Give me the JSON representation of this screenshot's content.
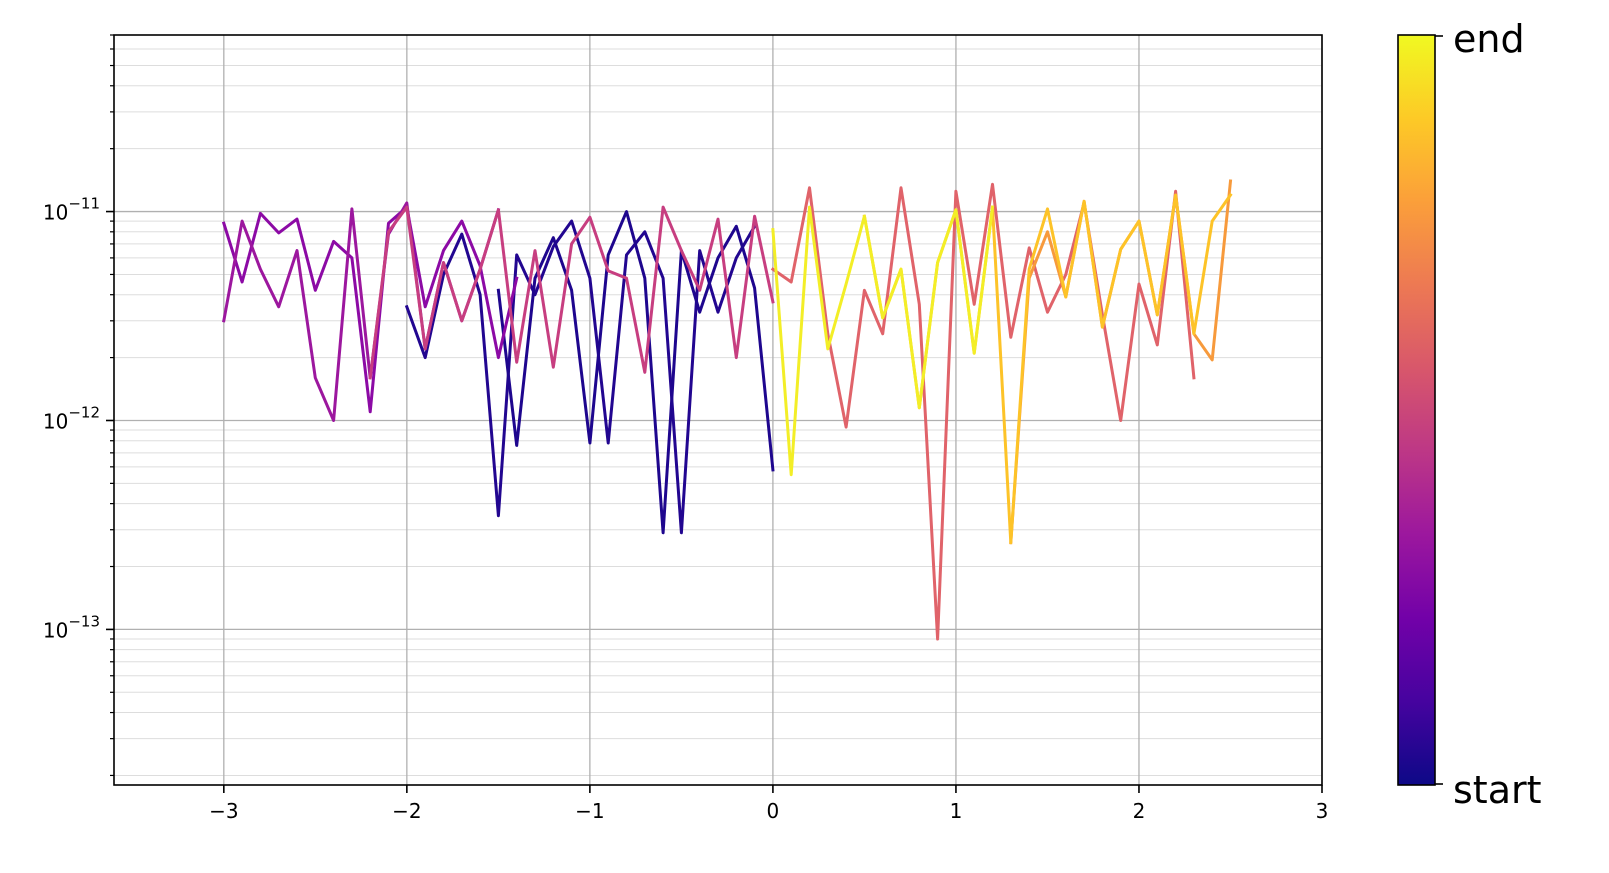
{
  "chart_data": {
    "type": "line",
    "title": "",
    "xlabel": "",
    "ylabel": "",
    "xlim": [
      -3.6,
      3.0
    ],
    "ylim": [
      1.8e-14,
      7e-11
    ],
    "yscale": "log",
    "grid": true,
    "x_ticks": [
      {
        "value": -3,
        "label": "−3"
      },
      {
        "value": -2,
        "label": "−2"
      },
      {
        "value": -1,
        "label": "−1"
      },
      {
        "value": 0,
        "label": "0"
      },
      {
        "value": 1,
        "label": "1"
      },
      {
        "value": 2,
        "label": "2"
      },
      {
        "value": 3,
        "label": "3"
      }
    ],
    "y_ticks": [
      {
        "value": 1e-11,
        "base": "10",
        "exp": "−11"
      },
      {
        "value": 1e-12,
        "base": "10",
        "exp": "−12"
      },
      {
        "value": 1e-13,
        "base": "10",
        "exp": "−13"
      }
    ],
    "colorbar": {
      "colormap": "plasma",
      "top_label": "end",
      "bottom_label": "start",
      "stops": [
        "#0d0887",
        "#46039f",
        "#7201a8",
        "#9c179e",
        "#bd3786",
        "#d8576b",
        "#ed7953",
        "#fb9f3a",
        "#fdca26",
        "#f0f921"
      ]
    },
    "series": [
      {
        "color": "#220690",
        "x": [
          -0.1,
          -0.2,
          -0.3,
          -0.4,
          -0.5,
          -0.6,
          -0.7,
          -0.8,
          -0.9,
          -1.0,
          -1.1,
          -1.2,
          -1.3,
          -1.4,
          -1.5,
          -1.6,
          -1.7,
          -1.8,
          -1.9,
          -2.0
        ],
        "y": [
          8.5e-12,
          6e-12,
          3.3e-12,
          6.5e-12,
          2.9e-13,
          4.8e-12,
          8e-12,
          6.2e-12,
          7.8e-13,
          4.8e-12,
          9e-12,
          6.8e-12,
          4e-12,
          6.2e-12,
          3.5e-13,
          4e-12,
          7.8e-12,
          5e-12,
          2e-12,
          3.5e-12
        ]
      },
      {
        "color": "#1e068e",
        "x": [
          0.0,
          -0.1,
          -0.2,
          -0.3,
          -0.4,
          -0.5,
          -0.6,
          -0.7,
          -0.8,
          -0.9,
          -1.0,
          -1.1,
          -1.2,
          -1.3,
          -1.4,
          -1.5
        ],
        "y": [
          5.8e-13,
          4.3e-12,
          8.5e-12,
          6e-12,
          3.3e-12,
          6.5e-12,
          2.9e-13,
          4.8e-12,
          1e-11,
          6.2e-12,
          7.8e-13,
          4.2e-12,
          7.5e-12,
          4.8e-12,
          7.6e-13,
          4.2e-12
        ]
      },
      {
        "color": "#8c0aa5",
        "x": [
          -3.0,
          -2.9,
          -2.8,
          -2.7,
          -2.6,
          -2.5,
          -2.4,
          -2.3,
          -2.2,
          -2.1,
          -2.0,
          -1.9,
          -1.8,
          -1.7,
          -1.6,
          -1.5,
          -1.4
        ],
        "y": [
          8.8e-12,
          4.6e-12,
          9.8e-12,
          7.9e-12,
          9.2e-12,
          4.2e-12,
          7.2e-12,
          6e-12,
          1.1e-12,
          8.8e-12,
          1.05e-11,
          3.5e-12,
          6.5e-12,
          9e-12,
          5.5e-12,
          2e-12,
          4.8e-12
        ]
      },
      {
        "color": "#9c179e",
        "x": [
          -3.0,
          -2.9,
          -2.8,
          -2.7,
          -2.6,
          -2.5,
          -2.4,
          -2.3,
          -2.2,
          -2.1,
          -2.0,
          -1.9,
          -1.8,
          -1.7,
          -1.6,
          -1.5
        ],
        "y": [
          3e-12,
          9e-12,
          5.3e-12,
          3.5e-12,
          6.5e-12,
          1.6e-12,
          1e-12,
          1.03e-11,
          1.6e-12,
          7.8e-12,
          1.1e-11,
          2.2e-12,
          5.7e-12,
          3e-12,
          5.3e-12,
          1.02e-11
        ]
      },
      {
        "color": "#c73e80",
        "x": [
          -2.2,
          -2.1,
          -2.0,
          -1.9,
          -1.8,
          -1.7,
          -1.6,
          -1.5,
          -1.4,
          -1.3,
          -1.2,
          -1.1,
          -1.0,
          -0.9,
          -0.8,
          -0.7,
          -0.6,
          -0.5,
          -0.4,
          -0.3,
          -0.2,
          -0.1,
          0.0
        ],
        "y": [
          1.6e-12,
          8e-12,
          1.05e-11,
          2.2e-12,
          5.7e-12,
          3e-12,
          5.3e-12,
          1.02e-11,
          1.9e-12,
          6.5e-12,
          1.8e-12,
          7e-12,
          9.4e-12,
          5.2e-12,
          4.8e-12,
          1.7e-12,
          1.05e-11,
          6.5e-12,
          4.2e-12,
          9.2e-12,
          2e-12,
          9.5e-12,
          3.7e-12
        ]
      },
      {
        "color": "#e0636a",
        "x": [
          0.0,
          0.1,
          0.2,
          0.3,
          0.4,
          0.5,
          0.6,
          0.7,
          0.8,
          0.9,
          1.0,
          1.1,
          1.2,
          1.3,
          1.4,
          1.5,
          1.6,
          1.7,
          1.8,
          1.9,
          2.0,
          2.1,
          2.2,
          2.3
        ],
        "y": [
          5.3e-12,
          4.6e-12,
          1.3e-11,
          2.6e-12,
          9.3e-13,
          4.2e-12,
          2.6e-12,
          1.3e-11,
          3.6e-12,
          9e-14,
          1.25e-11,
          3.6e-12,
          1.35e-11,
          2.5e-12,
          6.7e-12,
          3.3e-12,
          5e-12,
          1.1e-11,
          3.2e-12,
          1e-12,
          4.5e-12,
          2.3e-12,
          1.25e-11,
          1.6e-12
        ]
      },
      {
        "color": "#f79a3c",
        "x": [
          1.3,
          1.4,
          1.5,
          1.6,
          1.7,
          1.8,
          1.9,
          2.0,
          2.1,
          2.2,
          2.3,
          2.4,
          2.5
        ],
        "y": [
          2.6e-13,
          4.8e-12,
          8e-12,
          3.9e-12,
          1.12e-11,
          2.8e-12,
          6.6e-12,
          9e-12,
          3.2e-12,
          1.2e-11,
          2.6e-12,
          1.95e-12,
          1.4e-11
        ]
      },
      {
        "color": "#fdc328",
        "x": [
          0.5,
          0.6,
          0.7,
          0.8,
          0.9,
          1.0,
          1.1,
          1.2,
          1.3,
          1.4,
          1.5,
          1.6,
          1.7,
          1.8,
          1.9,
          2.0,
          2.1,
          2.2,
          2.3,
          2.4,
          2.5
        ],
        "y": [
          9.5e-12,
          3.1e-12,
          5.3e-12,
          1.15e-12,
          5.7e-12,
          1.02e-11,
          2.1e-12,
          1.05e-11,
          2.6e-13,
          5.3e-12,
          1.03e-11,
          3.9e-12,
          1.12e-11,
          2.8e-12,
          6.6e-12,
          9e-12,
          3.2e-12,
          1.2e-11,
          2.6e-12,
          9e-12,
          1.2e-11
        ]
      },
      {
        "color": "#f3ee27",
        "x": [
          0.0,
          0.1,
          0.2,
          0.3,
          0.4,
          0.5,
          0.6,
          0.7,
          0.8,
          0.9,
          1.0,
          1.1,
          1.2
        ],
        "y": [
          8.2e-12,
          5.5e-13,
          1.05e-11,
          2.2e-12,
          4.5e-12,
          9.5e-12,
          3.1e-12,
          5.3e-12,
          1.15e-12,
          5.7e-12,
          1.02e-11,
          2.1e-12,
          1.05e-11
        ]
      }
    ]
  }
}
